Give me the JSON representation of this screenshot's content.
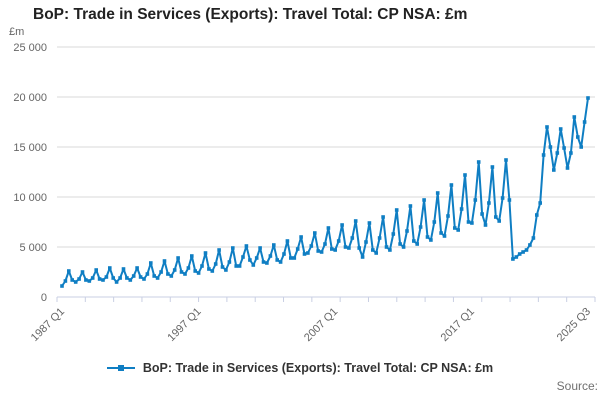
{
  "title": "BoP: Trade in Services (Exports): Travel Total: CP NSA: £m",
  "y_unit": "£m",
  "source_label": "Source:",
  "legend": {
    "label": "BoP: Trade in Services (Exports): Travel Total: CP NSA: £m"
  },
  "colors": {
    "line": "#0f7ec3",
    "grid": "#d9d9d9",
    "axis": "#c9cfe3",
    "tick_label": "#666666",
    "title": "#222222",
    "source": "#707070"
  },
  "chart_data": {
    "type": "line",
    "title": "BoP: Trade in Services (Exports): Travel Total: CP NSA: £m",
    "xlabel": "",
    "ylabel": "£m",
    "ylim": [
      0,
      25000
    ],
    "grid": true,
    "legend_position": "bottom",
    "y_ticks": [
      {
        "value": 0,
        "label": "0"
      },
      {
        "value": 5000,
        "label": "5 000"
      },
      {
        "value": 10000,
        "label": "10 000"
      },
      {
        "value": 15000,
        "label": "15 000"
      },
      {
        "value": 20000,
        "label": "20 000"
      },
      {
        "value": 25000,
        "label": "25 000"
      }
    ],
    "x_tick_labels": [
      {
        "label": "1987 Q1",
        "q": 0
      },
      {
        "label": "1997 Q1",
        "q": 40
      },
      {
        "label": "2007 Q1",
        "q": 80
      },
      {
        "label": "2017 Q1",
        "q": 120
      },
      {
        "label": "2025 Q3",
        "q": 154
      }
    ],
    "minor_tick_count": 20,
    "x_start": "1987 Q1",
    "x_end": "2025 Q3",
    "frequency": "quarterly",
    "series": [
      {
        "name": "BoP: Trade in Services (Exports): Travel Total: CP NSA: £m",
        "values": [
          1100,
          1600,
          2600,
          1700,
          1500,
          1800,
          2500,
          1700,
          1600,
          1900,
          2700,
          1800,
          1700,
          2000,
          2900,
          1900,
          1500,
          1900,
          2800,
          1900,
          1700,
          2100,
          2900,
          2000,
          1800,
          2300,
          3400,
          2100,
          1900,
          2500,
          3600,
          2300,
          2100,
          2700,
          3900,
          2500,
          2300,
          2900,
          4100,
          2600,
          2400,
          3100,
          4400,
          2800,
          2600,
          3300,
          4700,
          3000,
          2700,
          3500,
          4900,
          3100,
          3100,
          4000,
          5100,
          3700,
          3200,
          3900,
          4900,
          3500,
          3400,
          4100,
          5200,
          3700,
          3500,
          4300,
          5600,
          3900,
          3900,
          4800,
          6000,
          4300,
          4400,
          5100,
          6400,
          4600,
          4500,
          5300,
          6900,
          4800,
          4700,
          5600,
          7200,
          5000,
          4900,
          5900,
          7600,
          4900,
          4000,
          5500,
          7400,
          4700,
          4400,
          5900,
          8000,
          5000,
          4700,
          6300,
          8700,
          5300,
          5000,
          6600,
          9100,
          5600,
          5300,
          7000,
          9700,
          6000,
          5700,
          7500,
          10400,
          6400,
          6100,
          8100,
          11200,
          6900,
          6700,
          8800,
          12200,
          7500,
          7400,
          9700,
          13500,
          8300,
          7200,
          9400,
          13000,
          8000,
          7600,
          9900,
          13700,
          9700,
          3800,
          4000,
          4300,
          4500,
          4700,
          5200,
          5900,
          8200,
          9400,
          14200,
          17000,
          15000,
          12700,
          14400,
          16800,
          14900,
          12900,
          14400,
          18000,
          16000,
          15000,
          17500,
          19900
        ]
      }
    ]
  }
}
